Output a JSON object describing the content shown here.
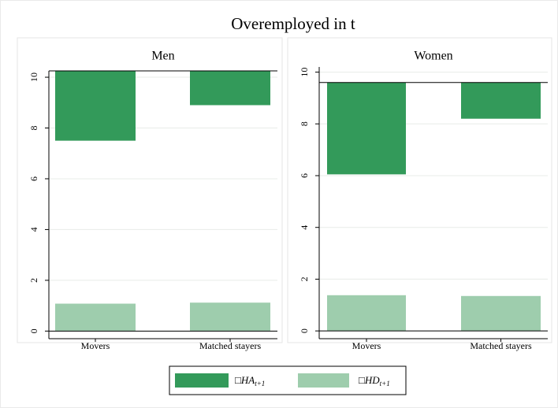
{
  "chart_data": {
    "type": "bar",
    "title": "Overemployed in t",
    "legend": [
      {
        "name": "□HA",
        "sub": "t+1",
        "color": "#339a5a"
      },
      {
        "name": "□HD",
        "sub": "t+1",
        "color": "#9ecdad"
      }
    ],
    "panels": [
      {
        "title": "Men",
        "categories": [
          "Movers",
          "Matched stayers"
        ],
        "reference": 10.25,
        "series": [
          {
            "values": [
              7.5,
              8.9
            ]
          },
          {
            "values": [
              1.08,
              1.12
            ]
          }
        ],
        "ylim": [
          -0.3,
          10.25
        ],
        "yticks": [
          0,
          2,
          4,
          6,
          8,
          10
        ]
      },
      {
        "title": "Women",
        "categories": [
          "Movers",
          "Matched stayers"
        ],
        "reference": 9.6,
        "series": [
          {
            "values": [
              6.05,
              8.2
            ]
          },
          {
            "values": [
              1.38,
              1.35
            ]
          }
        ],
        "ylim": [
          -0.3,
          10.2
        ],
        "yticks": [
          0,
          2,
          4,
          6,
          8,
          10
        ]
      }
    ]
  }
}
